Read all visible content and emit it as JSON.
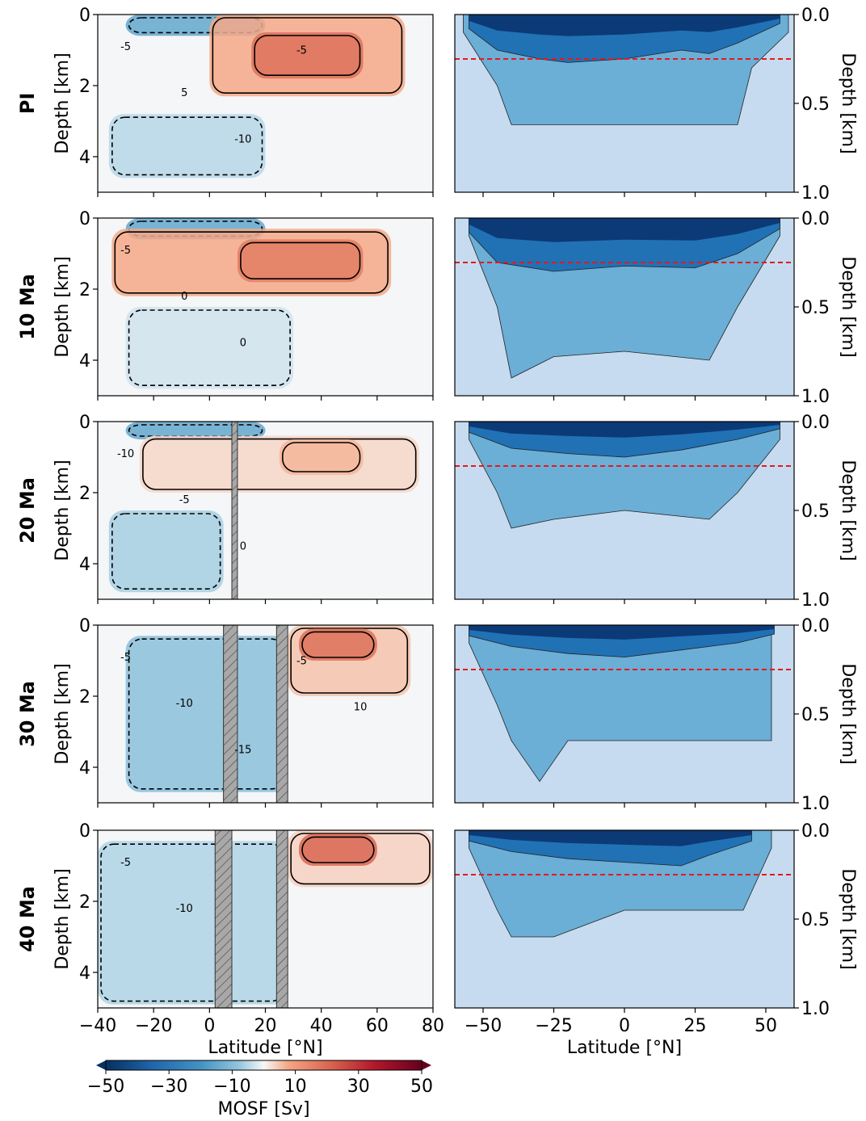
{
  "figure": {
    "row_labels": [
      "PI",
      "10 Ma",
      "20 Ma",
      "30 Ma",
      "40 Ma"
    ],
    "left_ylabel": "Depth [km]",
    "right_ylabel": "Depth [km]",
    "left_xlabel": "Latitude [°N]",
    "right_xlabel": "Latitude [°N]",
    "colorbar_label": "MOSF [Sv]"
  },
  "colors": {
    "negative_strong": "#053061",
    "negative": "#2166ac",
    "positive": "#b2182b",
    "positive_strong": "#67001f",
    "level_deep": "#c6dbef",
    "level_mid": "#6baed6",
    "level_upper": "#2171b5",
    "level_surface": "#08306b",
    "reference_line": "#e41a1c",
    "barrier": "#a0a0a0"
  },
  "chart_data": [
    {
      "type": "heatmap",
      "panel": "left",
      "row": "PI",
      "xlim": [
        -40,
        80
      ],
      "ylim": [
        5,
        0
      ],
      "xticks": [
        -40,
        -20,
        0,
        20,
        40,
        60,
        80
      ],
      "yticks": [
        0,
        2,
        4
      ],
      "ylabel": "Depth [km]",
      "contour_labels": [
        "-5",
        "5",
        "-10",
        "-5"
      ],
      "cells": [
        {
          "lat": [
            -30,
            20
          ],
          "depth": [
            0,
            0.6
          ],
          "value": -20
        },
        {
          "lat": [
            0,
            70
          ],
          "depth": [
            0,
            2.3
          ],
          "value": 12
        },
        {
          "lat": [
            15,
            55
          ],
          "depth": [
            0.5,
            1.8
          ],
          "value": 22
        },
        {
          "lat": [
            -36,
            20
          ],
          "depth": [
            2.8,
            4.6
          ],
          "value": -8
        }
      ]
    },
    {
      "type": "heatmap",
      "panel": "left",
      "row": "10 Ma",
      "xlim": [
        -40,
        80
      ],
      "ylim": [
        5,
        0
      ],
      "xticks": [
        -40,
        -20,
        0,
        20,
        40,
        60,
        80
      ],
      "yticks": [
        0,
        2,
        4
      ],
      "ylabel": "Depth [km]",
      "contour_labels": [
        "-5",
        "0",
        "0"
      ],
      "cells": [
        {
          "lat": [
            -30,
            20
          ],
          "depth": [
            0,
            0.6
          ],
          "value": -20
        },
        {
          "lat": [
            -35,
            65
          ],
          "depth": [
            0.3,
            2.2
          ],
          "value": 12
        },
        {
          "lat": [
            10,
            55
          ],
          "depth": [
            0.6,
            1.8
          ],
          "value": 20
        },
        {
          "lat": [
            -30,
            30
          ],
          "depth": [
            2.5,
            4.8
          ],
          "value": -5
        }
      ]
    },
    {
      "type": "heatmap",
      "panel": "left",
      "row": "20 Ma",
      "xlim": [
        -40,
        80
      ],
      "ylim": [
        5,
        0
      ],
      "xticks": [
        -40,
        -20,
        0,
        20,
        40,
        60,
        80
      ],
      "yticks": [
        0,
        2,
        4
      ],
      "ylabel": "Depth [km]",
      "contour_labels": [
        "-10",
        "-5",
        "0"
      ],
      "barriers": [
        [
          8,
          10
        ]
      ],
      "cells": [
        {
          "lat": [
            -30,
            20
          ],
          "depth": [
            0,
            0.5
          ],
          "value": -20
        },
        {
          "lat": [
            -25,
            75
          ],
          "depth": [
            0.4,
            2.0
          ],
          "value": 5
        },
        {
          "lat": [
            25,
            55
          ],
          "depth": [
            0.5,
            1.5
          ],
          "value": 10
        },
        {
          "lat": [
            -36,
            5
          ],
          "depth": [
            2.5,
            4.8
          ],
          "value": -10
        }
      ]
    },
    {
      "type": "heatmap",
      "panel": "left",
      "row": "30 Ma",
      "xlim": [
        -40,
        80
      ],
      "ylim": [
        5,
        0
      ],
      "xticks": [
        -40,
        -20,
        0,
        20,
        40,
        60,
        80
      ],
      "yticks": [
        0,
        2,
        4
      ],
      "ylabel": "Depth [km]",
      "contour_labels": [
        "-5",
        "-10",
        "-15",
        "-5",
        "10"
      ],
      "barriers": [
        [
          5,
          10
        ],
        [
          24,
          28
        ]
      ],
      "cells": [
        {
          "lat": [
            -30,
            28
          ],
          "depth": [
            0.3,
            4.7
          ],
          "value": -14
        },
        {
          "lat": [
            28,
            72
          ],
          "depth": [
            0,
            2.0
          ],
          "value": 8
        },
        {
          "lat": [
            32,
            60
          ],
          "depth": [
            0.1,
            1.0
          ],
          "value": 22
        }
      ]
    },
    {
      "type": "heatmap",
      "panel": "left",
      "row": "40 Ma",
      "xlim": [
        -40,
        80
      ],
      "ylim": [
        5,
        0
      ],
      "xticks": [
        -40,
        -20,
        0,
        20,
        40,
        60,
        80
      ],
      "yticks": [
        0,
        2,
        4
      ],
      "ylabel": "Depth [km]",
      "xlabel": "Latitude [°N]",
      "contour_labels": [
        "-5",
        "-10"
      ],
      "barriers": [
        [
          2,
          8
        ],
        [
          24,
          28
        ]
      ],
      "cells": [
        {
          "lat": [
            -40,
            28
          ],
          "depth": [
            0.3,
            4.9
          ],
          "value": -9
        },
        {
          "lat": [
            28,
            80
          ],
          "depth": [
            0,
            1.6
          ],
          "value": 6
        },
        {
          "lat": [
            32,
            60
          ],
          "depth": [
            0.1,
            1.0
          ],
          "value": 24
        }
      ]
    },
    {
      "type": "heatmap",
      "panel": "right",
      "row": "PI",
      "xlim": [
        -60,
        60
      ],
      "ylim": [
        1.0,
        0.0
      ],
      "xticks": [
        -50,
        -25,
        0,
        25,
        50
      ],
      "yticks": [
        0.0,
        0.5,
        1.0
      ],
      "ylabel": "Depth [km]",
      "reference_depth": 0.25,
      "bands": [
        {
          "level": "surface",
          "profile": [
            [
              -55,
              0.08
            ],
            [
              -45,
              0.2
            ],
            [
              -30,
              0.25
            ],
            [
              -20,
              0.27
            ],
            [
              0,
              0.25
            ],
            [
              20,
              0.2
            ],
            [
              30,
              0.22
            ],
            [
              40,
              0.16
            ],
            [
              55,
              0.05
            ]
          ]
        },
        {
          "level": "mid",
          "profile": [
            [
              -57,
              0.1
            ],
            [
              -45,
              0.4
            ],
            [
              -40,
              0.62
            ],
            [
              -25,
              0.62
            ],
            [
              0,
              0.62
            ],
            [
              30,
              0.62
            ],
            [
              40,
              0.62
            ],
            [
              45,
              0.3
            ],
            [
              58,
              0.1
            ]
          ]
        }
      ]
    },
    {
      "type": "heatmap",
      "panel": "right",
      "row": "10 Ma",
      "xlim": [
        -60,
        60
      ],
      "ylim": [
        1.0,
        0.0
      ],
      "xticks": [
        -50,
        -25,
        0,
        25,
        50
      ],
      "yticks": [
        0.0,
        0.5,
        1.0
      ],
      "ylabel": "Depth [km]",
      "reference_depth": 0.25,
      "bands": [
        {
          "level": "surface",
          "profile": [
            [
              -55,
              0.08
            ],
            [
              -45,
              0.25
            ],
            [
              -25,
              0.3
            ],
            [
              0,
              0.27
            ],
            [
              25,
              0.28
            ],
            [
              40,
              0.2
            ],
            [
              55,
              0.06
            ]
          ]
        },
        {
          "level": "mid",
          "profile": [
            [
              -55,
              0.1
            ],
            [
              -45,
              0.5
            ],
            [
              -40,
              0.9
            ],
            [
              -25,
              0.78
            ],
            [
              0,
              0.75
            ],
            [
              30,
              0.8
            ],
            [
              40,
              0.5
            ],
            [
              55,
              0.1
            ]
          ]
        }
      ]
    },
    {
      "type": "heatmap",
      "panel": "right",
      "row": "20 Ma",
      "xlim": [
        -60,
        60
      ],
      "ylim": [
        1.0,
        0.0
      ],
      "xticks": [
        -50,
        -25,
        0,
        25,
        50
      ],
      "yticks": [
        0.0,
        0.5,
        1.0
      ],
      "ylabel": "Depth [km]",
      "reference_depth": 0.25,
      "bands": [
        {
          "level": "surface",
          "profile": [
            [
              -55,
              0.06
            ],
            [
              -40,
              0.15
            ],
            [
              -20,
              0.18
            ],
            [
              0,
              0.2
            ],
            [
              20,
              0.16
            ],
            [
              40,
              0.1
            ],
            [
              55,
              0.04
            ]
          ]
        },
        {
          "level": "mid",
          "profile": [
            [
              -55,
              0.1
            ],
            [
              -45,
              0.4
            ],
            [
              -40,
              0.6
            ],
            [
              -25,
              0.55
            ],
            [
              0,
              0.5
            ],
            [
              30,
              0.55
            ],
            [
              40,
              0.4
            ],
            [
              55,
              0.1
            ]
          ]
        }
      ]
    },
    {
      "type": "heatmap",
      "panel": "right",
      "row": "30 Ma",
      "xlim": [
        -60,
        60
      ],
      "ylim": [
        1.0,
        0.0
      ],
      "xticks": [
        -50,
        -25,
        0,
        25,
        50
      ],
      "yticks": [
        0.0,
        0.5,
        1.0
      ],
      "ylabel": "Depth [km]",
      "reference_depth": 0.25,
      "bands": [
        {
          "level": "surface",
          "profile": [
            [
              -55,
              0.06
            ],
            [
              -40,
              0.12
            ],
            [
              -20,
              0.16
            ],
            [
              0,
              0.18
            ],
            [
              20,
              0.14
            ],
            [
              40,
              0.1
            ],
            [
              53,
              0.05
            ]
          ]
        },
        {
          "level": "mid",
          "profile": [
            [
              -55,
              0.1
            ],
            [
              -45,
              0.45
            ],
            [
              -40,
              0.65
            ],
            [
              -30,
              0.88
            ],
            [
              -20,
              0.65
            ],
            [
              0,
              0.65
            ],
            [
              30,
              0.65
            ],
            [
              52,
              0.65
            ]
          ]
        }
      ]
    },
    {
      "type": "heatmap",
      "panel": "right",
      "row": "40 Ma",
      "xlim": [
        -60,
        60
      ],
      "ylim": [
        1.0,
        0.0
      ],
      "xticks": [
        -50,
        -25,
        0,
        25,
        50
      ],
      "yticks": [
        0.0,
        0.5,
        1.0
      ],
      "ylabel": "Depth [km]",
      "xlabel": "Latitude [°N]",
      "reference_depth": 0.25,
      "bands": [
        {
          "level": "surface",
          "profile": [
            [
              -55,
              0.06
            ],
            [
              -40,
              0.12
            ],
            [
              -20,
              0.16
            ],
            [
              0,
              0.18
            ],
            [
              20,
              0.2
            ],
            [
              30,
              0.14
            ],
            [
              45,
              0.06
            ]
          ]
        },
        {
          "level": "mid",
          "profile": [
            [
              -55,
              0.1
            ],
            [
              -45,
              0.45
            ],
            [
              -40,
              0.6
            ],
            [
              -25,
              0.6
            ],
            [
              0,
              0.45
            ],
            [
              30,
              0.45
            ],
            [
              42,
              0.45
            ],
            [
              52,
              0.1
            ]
          ]
        }
      ]
    }
  ],
  "colorbar": {
    "ticks": [
      -50,
      -30,
      -10,
      10,
      30,
      50
    ],
    "range": [
      -50,
      50
    ],
    "label": "MOSF [Sv]"
  }
}
